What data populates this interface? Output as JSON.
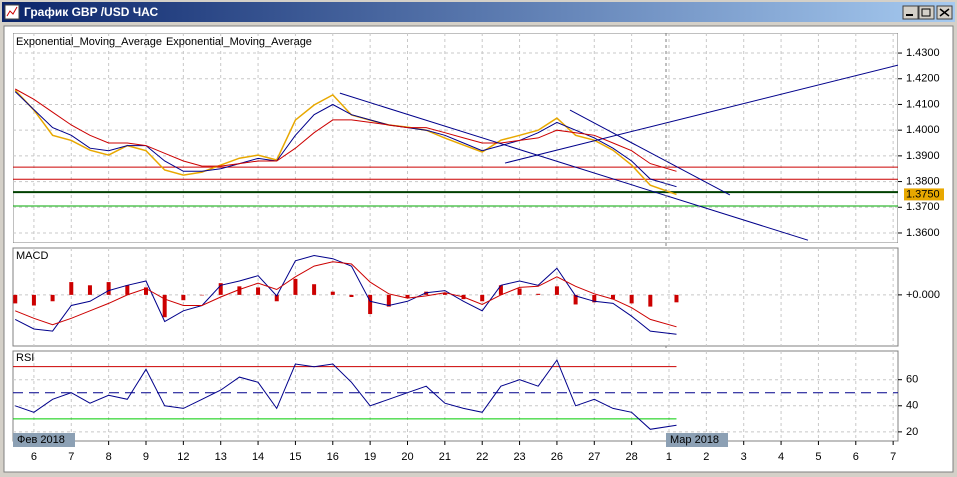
{
  "window": {
    "title": "График GBP /USD ЧАС"
  },
  "chart_data": [
    {
      "type": "price",
      "x": [
        -0.5,
        0,
        0.5,
        1,
        1.5,
        2,
        2.5,
        3,
        3.5,
        4,
        4.5,
        5,
        5.5,
        6,
        6.5,
        7,
        7.5,
        8,
        8.5,
        9,
        9.5,
        10,
        10.5,
        11,
        11.5,
        12,
        12.5,
        13,
        13.5,
        14,
        14.5,
        15,
        15.5,
        16,
        16.5,
        17.2
      ],
      "xlim": [
        -0.56,
        23.13
      ],
      "ylim": [
        1.3561,
        1.4378
      ],
      "yticks": [
        {
          "value": 1.36,
          "label": "1.3600"
        },
        {
          "value": 1.37,
          "label": "1.3700"
        },
        {
          "value": 1.38,
          "label": "1.3800"
        },
        {
          "value": 1.39,
          "label": "1.3900"
        },
        {
          "value": 1.4,
          "label": "1.4000"
        },
        {
          "value": 1.41,
          "label": "1.4100"
        },
        {
          "value": 1.42,
          "label": "1.4200"
        },
        {
          "value": 1.43,
          "label": "1.4300"
        }
      ],
      "price": {
        "color": "#e8a800",
        "values": [
          1.4156,
          1.4078,
          1.398,
          1.396,
          1.3922,
          1.3903,
          1.394,
          1.392,
          1.3845,
          1.3825,
          1.3837,
          1.3864,
          1.3891,
          1.3903,
          1.3884,
          1.4039,
          1.4098,
          1.4137,
          1.4059,
          1.4039,
          1.402,
          1.4012,
          1.4,
          1.3969,
          1.3942,
          1.3915,
          1.3961,
          1.398,
          1.4,
          1.4047,
          1.398,
          1.3961,
          1.3922,
          1.3864,
          1.3786,
          1.375
        ]
      },
      "series": [
        {
          "name": "Exponential_Moving_Average",
          "color": "#00008b",
          "values": [
            1.415,
            1.408,
            1.401,
            1.398,
            1.393,
            1.392,
            1.394,
            1.394,
            1.388,
            1.384,
            1.384,
            1.385,
            1.387,
            1.389,
            1.388,
            1.398,
            1.406,
            1.41,
            1.406,
            1.404,
            1.402,
            1.401,
            1.4,
            1.398,
            1.395,
            1.392,
            1.394,
            1.396,
            1.399,
            1.403,
            1.4,
            1.397,
            1.393,
            1.388,
            1.381,
            1.378
          ]
        },
        {
          "name": "Exponential_Moving_Average",
          "color": "#cc0000",
          "values": [
            1.416,
            1.412,
            1.407,
            1.402,
            1.398,
            1.395,
            1.395,
            1.394,
            1.391,
            1.388,
            1.386,
            1.386,
            1.387,
            1.388,
            1.388,
            1.393,
            1.399,
            1.404,
            1.404,
            1.403,
            1.402,
            1.401,
            1.401,
            1.399,
            1.397,
            1.395,
            1.395,
            1.396,
            1.397,
            1.4,
            1.399,
            1.398,
            1.395,
            1.392,
            1.387,
            1.384
          ]
        }
      ],
      "last_price": {
        "value": 1.375,
        "label": "1.3750"
      },
      "levels": [
        {
          "value": 1.3856,
          "color": "#cc0000"
        },
        {
          "value": 1.3809,
          "color": "#cc0000"
        },
        {
          "value": 1.3759,
          "color": "#004000"
        },
        {
          "value": 1.3705,
          "color": "#00aa00"
        }
      ],
      "trend_lines": [
        {
          "x": [
            8.19,
            20.72
          ],
          "y": [
            1.4144,
            1.3572
          ],
          "color": "#00008b"
        },
        {
          "x": [
            14.35,
            18.63
          ],
          "y": [
            1.4078,
            1.3748
          ],
          "color": "#00008b"
        },
        {
          "x": [
            12.61,
            23.13
          ],
          "y": [
            1.3872,
            1.4253
          ],
          "color": "#00008b"
        }
      ],
      "cursor_x": 16.92
    },
    {
      "type": "macd",
      "title": "MACD",
      "x": [
        -0.5,
        0,
        0.5,
        1,
        1.5,
        2,
        2.5,
        3,
        3.5,
        4,
        4.5,
        5,
        5.5,
        6,
        6.5,
        7,
        7.5,
        8,
        8.5,
        9,
        9.5,
        10,
        10.5,
        11,
        11.5,
        12,
        12.5,
        13,
        13.5,
        14,
        14.5,
        15,
        15.5,
        16,
        16.5,
        17.2
      ],
      "xlim": [
        -0.56,
        23.13
      ],
      "ylim": [
        -0.0048,
        0.0044
      ],
      "yticks": [
        {
          "value": 0,
          "label": "+0.000"
        }
      ],
      "series": [
        {
          "color": "#00008b",
          "values": [
            -0.0023,
            -0.0032,
            -0.0034,
            -0.001,
            -0.0006,
            0.0004,
            0.0009,
            0.0013,
            -0.0025,
            -0.0015,
            -0.001,
            0.0009,
            0.0013,
            0.0018,
            -0.0001,
            0.0032,
            0.0037,
            0.0034,
            0.0027,
            -0.0006,
            -0.001,
            -0.0006,
            0.0002,
            0.0004,
            -0.0006,
            -0.0015,
            0.0009,
            0.0013,
            0.0009,
            0.0025,
            -0.0001,
            -0.0006,
            -0.0008,
            -0.002,
            -0.0034,
            -0.0037
          ]
        },
        {
          "color": "#cc0000",
          "values": [
            -0.0015,
            -0.0022,
            -0.0028,
            -0.0022,
            -0.0015,
            -0.0008,
            0,
            0.0006,
            -0.0004,
            -0.001,
            -0.001,
            -0.0002,
            0.0005,
            0.0011,
            0.0005,
            0.0017,
            0.0027,
            0.0031,
            0.0029,
            0.0012,
            0.0001,
            -0.0003,
            -0.0001,
            0.0002,
            -0.0002,
            -0.0009,
            0,
            0.0007,
            0.0008,
            0.0017,
            0.0008,
            0.0001,
            -0.0004,
            -0.0012,
            -0.0023,
            -0.003
          ]
        }
      ],
      "histogram": {
        "color": "#cc0000",
        "values": [
          -0.0008,
          -0.001,
          -0.0006,
          0.0012,
          0.0009,
          0.0012,
          0.0009,
          0.0007,
          -0.0021,
          -0.0005,
          0,
          0.0011,
          0.0008,
          0.0007,
          -0.0006,
          0.0015,
          0.001,
          0.0003,
          -0.0002,
          -0.0018,
          -0.0011,
          -0.0003,
          0.0003,
          0.0002,
          -0.0004,
          -0.0006,
          0.0009,
          0.0006,
          0.0001,
          0.0008,
          -0.0009,
          -0.0007,
          -0.0004,
          -0.0008,
          -0.0011,
          -0.0007
        ]
      }
    },
    {
      "type": "rsi",
      "title": "RSI",
      "x": [
        -0.5,
        0,
        0.5,
        1,
        1.5,
        2,
        2.5,
        3,
        3.5,
        4,
        4.5,
        5,
        5.5,
        6,
        6.5,
        7,
        7.5,
        8,
        8.5,
        9,
        9.5,
        10,
        10.5,
        11,
        11.5,
        12,
        12.5,
        13,
        13.5,
        14,
        14.5,
        15,
        15.5,
        16,
        16.5,
        17.2
      ],
      "xlim": [
        -0.56,
        23.13
      ],
      "ylim": [
        13,
        82
      ],
      "yticks": [
        20,
        40,
        60
      ],
      "series": [
        {
          "color": "#00008b",
          "values": [
            40,
            35,
            45,
            50,
            42,
            48,
            45,
            68,
            40,
            38,
            45,
            52,
            62,
            58,
            38,
            72,
            70,
            72,
            58,
            40,
            45,
            50,
            55,
            42,
            38,
            35,
            55,
            60,
            55,
            75,
            40,
            45,
            38,
            35,
            22,
            25
          ]
        }
      ],
      "levels": [
        {
          "value": 70,
          "color": "#cc0000"
        },
        {
          "value": 50,
          "color": "#00008b",
          "dash": true
        },
        {
          "value": 30,
          "color": "#00cc00"
        }
      ],
      "xticks": [
        {
          "value": 0,
          "label": "6"
        },
        {
          "value": 1,
          "label": "7"
        },
        {
          "value": 2,
          "label": "8"
        },
        {
          "value": 3,
          "label": "9"
        },
        {
          "value": 4,
          "label": "12"
        },
        {
          "value": 5,
          "label": "13"
        },
        {
          "value": 6,
          "label": "14"
        },
        {
          "value": 7,
          "label": "15"
        },
        {
          "value": 8,
          "label": "16"
        },
        {
          "value": 9,
          "label": "19"
        },
        {
          "value": 10,
          "label": "20"
        },
        {
          "value": 11,
          "label": "21"
        },
        {
          "value": 12,
          "label": "22"
        },
        {
          "value": 13,
          "label": "23"
        },
        {
          "value": 14,
          "label": "26"
        },
        {
          "value": 15,
          "label": "27"
        },
        {
          "value": 16,
          "label": "28"
        },
        {
          "value": 17,
          "label": "1"
        },
        {
          "value": 18,
          "label": "2"
        },
        {
          "value": 19,
          "label": "3"
        },
        {
          "value": 20,
          "label": "4"
        },
        {
          "value": 21,
          "label": "5"
        },
        {
          "value": 22,
          "label": "6"
        },
        {
          "value": 23,
          "label": "7"
        }
      ],
      "months": [
        {
          "value": -0.56,
          "label": "Фев 2018"
        },
        {
          "value": 16.92,
          "label": "Мар 2018"
        }
      ]
    }
  ]
}
